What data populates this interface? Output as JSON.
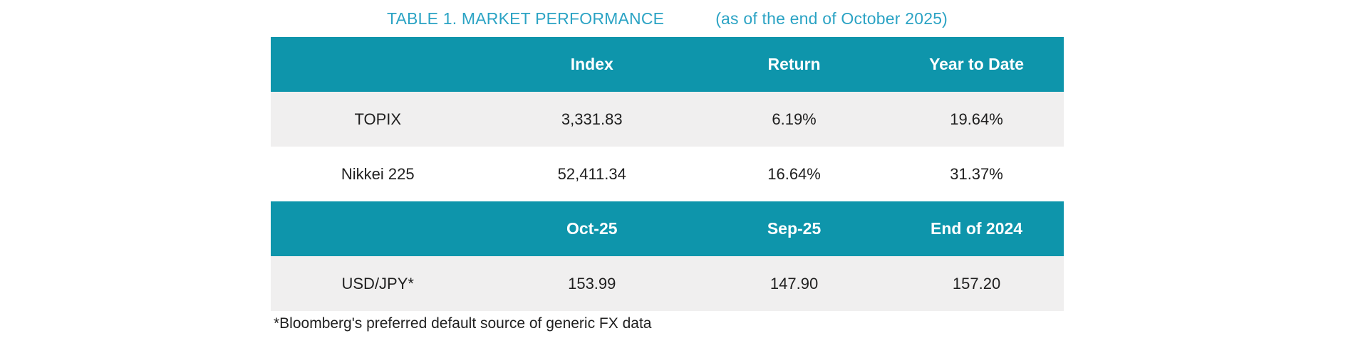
{
  "title": {
    "main": "TABLE 1. MARKET PERFORMANCE",
    "suffix": "(as of the end of October 2025)"
  },
  "colors": {
    "header_bg": "#0e95ab",
    "title_text": "#2ba3c4",
    "row_alt_bg": "#f0efef",
    "body_text": "#1f1f1f"
  },
  "tables": [
    {
      "headers": {
        "col1": "",
        "col2": "Index",
        "col3": "Return",
        "col4": "Year to Date"
      },
      "rows": [
        {
          "label": "TOPIX",
          "index": "3,331.83",
          "return": "6.19%",
          "ytd": "19.64%"
        },
        {
          "label": "Nikkei 225",
          "index": "52,411.34",
          "return": "16.64%",
          "ytd": "31.37%"
        }
      ]
    },
    {
      "headers": {
        "col1": "",
        "col2": "Oct-25",
        "col3": "Sep-25",
        "col4": "End of 2024"
      },
      "rows": [
        {
          "label": "USD/JPY*",
          "oct": "153.99",
          "sep": "147.90",
          "end2024": "157.20"
        }
      ]
    }
  ],
  "footnote": "*Bloomberg's preferred default source of generic FX data"
}
